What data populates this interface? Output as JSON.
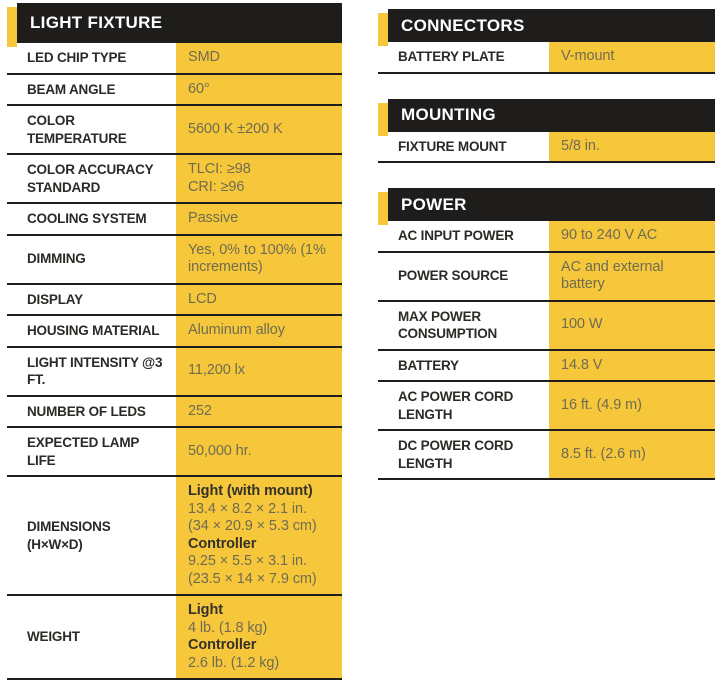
{
  "colors": {
    "yellow": "#F6C73A",
    "header_bg": "#1F1D1B",
    "divider": "#1F1D1B",
    "label_text": "#2B2A26",
    "value_text": "#6F6C52",
    "value_bold_text": "#33312A"
  },
  "tables": [
    {
      "id": "light-fixture",
      "title": "LIGHT FIXTURE",
      "column": "left",
      "rows": [
        {
          "label": "LED CHIP TYPE",
          "value": [
            {
              "text": "SMD"
            }
          ]
        },
        {
          "label": "BEAM ANGLE",
          "value": [
            {
              "text": "60°"
            }
          ]
        },
        {
          "label": "COLOR TEMPERATURE",
          "value": [
            {
              "text": "5600 K ±200 K"
            }
          ]
        },
        {
          "label": "COLOR ACCURACY STANDARD",
          "value": [
            {
              "text": "TLCI: ≥98"
            },
            {
              "text": "CRI: ≥96"
            }
          ]
        },
        {
          "label": "COOLING SYSTEM",
          "value": [
            {
              "text": "Passive"
            }
          ]
        },
        {
          "label": "DIMMING",
          "value": [
            {
              "text": "Yes, 0% to 100% (1% increments)"
            }
          ]
        },
        {
          "label": "DISPLAY",
          "value": [
            {
              "text": "LCD"
            }
          ]
        },
        {
          "label": "HOUSING MATERIAL",
          "value": [
            {
              "text": "Aluminum alloy"
            }
          ]
        },
        {
          "label": "LIGHT INTENSITY @3 FT.",
          "value": [
            {
              "text": "11,200 lx"
            }
          ]
        },
        {
          "label": "NUMBER OF LEDS",
          "value": [
            {
              "text": "252"
            }
          ]
        },
        {
          "label": "EXPECTED LAMP LIFE",
          "value": [
            {
              "text": "50,000 hr."
            }
          ]
        },
        {
          "label": "DIMENSIONS (H×W×D)",
          "value": [
            {
              "text": "Light (with mount)",
              "bold": true
            },
            {
              "text": "13.4 × 8.2 × 2.1 in."
            },
            {
              "text": "(34 × 20.9 × 5.3 cm)"
            },
            {
              "text": "Controller",
              "bold": true
            },
            {
              "text": "9.25 × 5.5 × 3.1 in."
            },
            {
              "text": "(23.5 × 14 × 7.9 cm)"
            }
          ]
        },
        {
          "label": "WEIGHT",
          "value": [
            {
              "text": "Light",
              "bold": true
            },
            {
              "text": "4 lb. (1.8 kg)"
            },
            {
              "text": "Controller",
              "bold": true
            },
            {
              "text": "2.6 lb. (1.2 kg)"
            }
          ]
        }
      ]
    },
    {
      "id": "connectors",
      "title": "CONNECTORS",
      "column": "right",
      "rows": [
        {
          "label": "BATTERY PLATE",
          "value": [
            {
              "text": "V-mount"
            }
          ]
        }
      ]
    },
    {
      "id": "mounting",
      "title": "MOUNTING",
      "column": "right",
      "rows": [
        {
          "label": "FIXTURE MOUNT",
          "value": [
            {
              "text": "5/8 in."
            }
          ]
        }
      ]
    },
    {
      "id": "power",
      "title": "POWER",
      "column": "right",
      "rows": [
        {
          "label": "AC INPUT POWER",
          "value": [
            {
              "text": "90 to 240 V AC"
            }
          ]
        },
        {
          "label": "POWER SOURCE",
          "value": [
            {
              "text": "AC and external battery"
            }
          ]
        },
        {
          "label": "MAX POWER CONSUMPTION",
          "value": [
            {
              "text": "100 W"
            }
          ]
        },
        {
          "label": "BATTERY",
          "value": [
            {
              "text": "14.8 V"
            }
          ]
        },
        {
          "label": "AC POWER CORD LENGTH",
          "value": [
            {
              "text": "16 ft. (4.9 m)"
            }
          ]
        },
        {
          "label": "DC POWER CORD LENGTH",
          "value": [
            {
              "text": "8.5 ft. (2.6 m)"
            }
          ]
        }
      ]
    }
  ]
}
